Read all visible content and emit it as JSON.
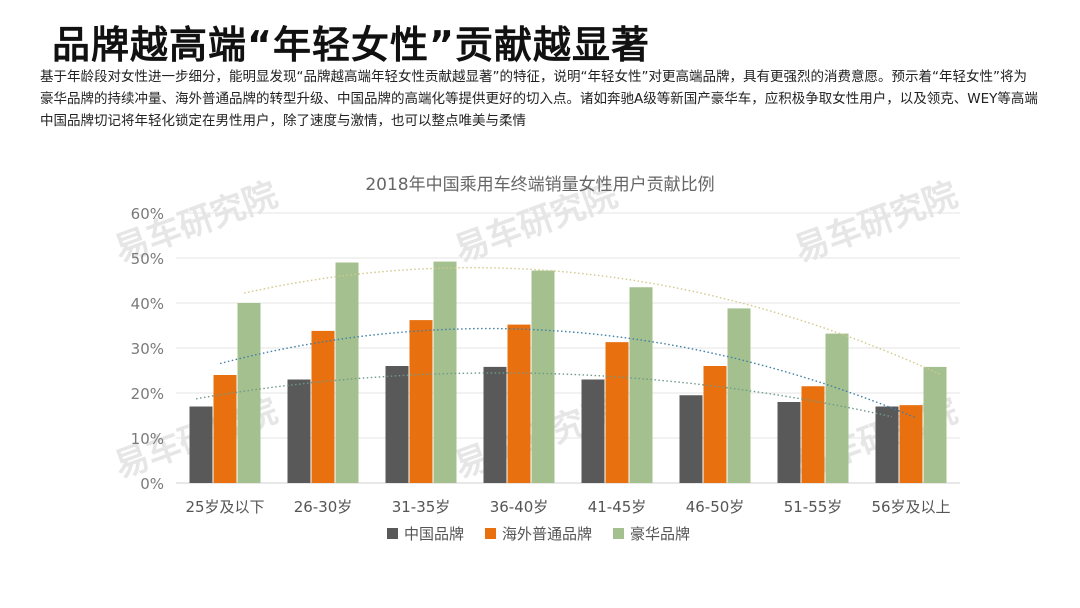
{
  "page": {
    "title": "品牌越高端“年轻女性”贡献越显著",
    "description": "基于年龄段对女性进一步细分，能明显发现“品牌越高端年轻女性贡献越显著”的特征，说明“年轻女性”对更高端品牌，具有更强烈的消费意愿。预示着“年轻女性”将为豪华品牌的持续冲量、海外普通品牌的转型升级、中国品牌的高端化等提供更好的切入点。诸如奔驰A级等新国产豪华车，应积极争取女性用户，以及领克、WEY等高端中国品牌切记将年轻化锁定在男性用户，除了速度与激情，也可以整点唯美与柔情",
    "watermark": "易车研究院"
  },
  "colors": {
    "china": "#595959",
    "overseas": "#e8700e",
    "luxury": "#a4c08e"
  },
  "chart_data": {
    "type": "bar",
    "title": "2018年中国乘用车终端销量女性用户贡献比例",
    "categories": [
      "25岁及以下",
      "26-30岁",
      "31-35岁",
      "36-40岁",
      "41-45岁",
      "46-50岁",
      "51-55岁",
      "56岁及以上"
    ],
    "series": [
      {
        "name": "中国品牌",
        "values": [
          17,
          23,
          26,
          25.8,
          23,
          19.5,
          18,
          17
        ]
      },
      {
        "name": "海外普通品牌",
        "values": [
          24,
          33.8,
          36.2,
          35.2,
          31.3,
          26,
          21.5,
          17.3
        ]
      },
      {
        "name": "豪华品牌",
        "values": [
          40,
          49,
          49.2,
          47.2,
          43.5,
          38.8,
          33.2,
          25.8
        ]
      }
    ],
    "ylim": [
      0,
      60
    ],
    "yticks": [
      "0%",
      "10%",
      "20%",
      "30%",
      "40%",
      "50%",
      "60%"
    ],
    "trendlines": "dotted polynomial per series",
    "legend": "bottom",
    "grid": true
  }
}
